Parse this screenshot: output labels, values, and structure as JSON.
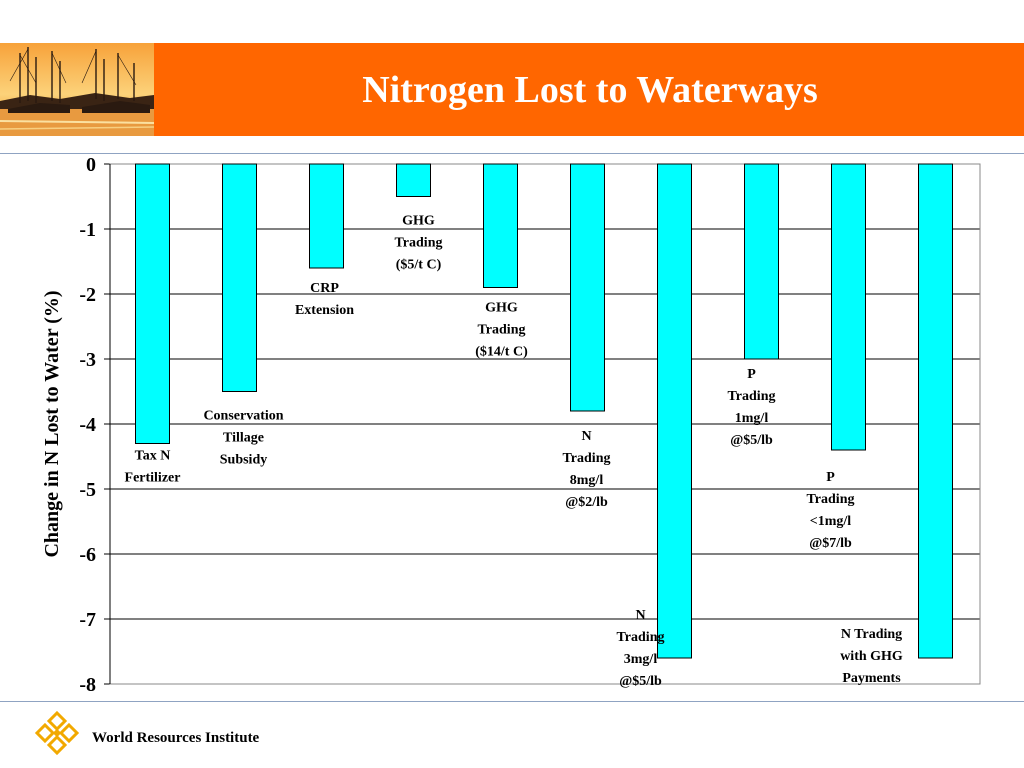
{
  "slide": {
    "title": "Nitrogen Lost to Waterways",
    "footer": "World Resources Institute"
  },
  "colors": {
    "header": "#ff6600",
    "bar": "#00ffff",
    "bar_stroke": "#000000",
    "grid": "#000000"
  },
  "icons": {
    "header_photo": "harbor-sunset-photo",
    "footer_logo": "wri-logo-icon"
  },
  "chart_data": {
    "type": "bar",
    "title": "",
    "xlabel": "",
    "ylabel": "Change in N Lost to Water (%)",
    "ylim": [
      -8,
      0
    ],
    "yticks": [
      "0",
      "-1",
      "-2",
      "-3",
      "-4",
      "-5",
      "-6",
      "-7",
      "-8"
    ],
    "grid": true,
    "categories": [
      "Tax N Fertilizer",
      "Conservation Tillage Subsidy",
      "CRP Extension",
      "GHG Trading ($5/t C)",
      "GHG Trading ($14/t C)",
      "N Trading 8mg/l @$2/lb",
      "N Trading 3mg/l @$5/lb",
      "P Trading 1mg/l @$5/lb",
      "P Trading <1mg/l @$7/lb",
      "N Trading with GHG Payments"
    ],
    "values": [
      -4.3,
      -3.5,
      -1.6,
      -0.5,
      -1.9,
      -3.8,
      -7.6,
      -3.0,
      -4.4,
      -7.6
    ],
    "labels": [
      [
        "Tax N",
        "Fertilizer"
      ],
      [
        "Conservation",
        "Tillage",
        "Subsidy"
      ],
      [
        "CRP",
        "Extension"
      ],
      [
        "GHG",
        "Trading",
        "($5/t C)"
      ],
      [
        "GHG",
        "Trading",
        "($14/t C)"
      ],
      [
        "N",
        "Trading",
        "8mg/l",
        "@$2/lb"
      ],
      [
        "N",
        "Trading",
        "3mg/l",
        "@$5/lb"
      ],
      [
        "P",
        "Trading",
        "1mg/l",
        "@$5/lb"
      ],
      [
        "P",
        "Trading",
        "<1mg/l",
        "@$7/lb"
      ],
      [
        "N Trading",
        "with GHG",
        "Payments"
      ]
    ]
  }
}
